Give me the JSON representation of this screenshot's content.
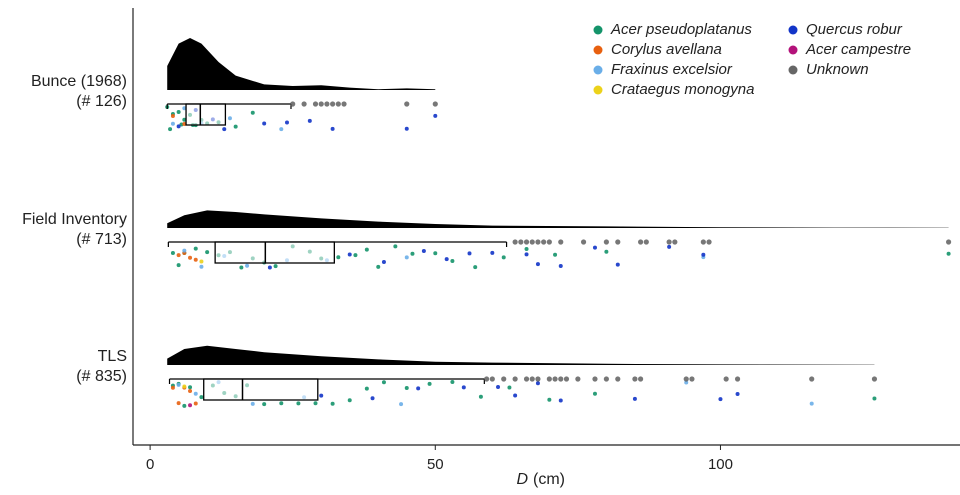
{
  "chart_data": {
    "type": "raincloud",
    "xlabel": "D",
    "xlabel_unit": "(cm)",
    "xlim": [
      -3,
      142
    ],
    "xticks": [
      0,
      50,
      100
    ],
    "legend": [
      {
        "name": "Acer pseudoplatanus",
        "color": "#14946a"
      },
      {
        "name": "Corylus avellana",
        "color": "#e8600f"
      },
      {
        "name": "Fraxinus excelsior",
        "color": "#6aaee8"
      },
      {
        "name": "Crataegus monogyna",
        "color": "#ecd21a"
      },
      {
        "name": "Quercus robur",
        "color": "#1234c8"
      },
      {
        "name": "Acer campestre",
        "color": "#b3127a"
      },
      {
        "name": "Unknown",
        "color": "#666666"
      }
    ],
    "groups": [
      {
        "label": "Bunce (1968)",
        "count_label": "(# 126)",
        "density": {
          "x": [
            3,
            5,
            7,
            9,
            12,
            15,
            20,
            25,
            30,
            35,
            40,
            45,
            50
          ],
          "values": [
            0.03,
            0.058,
            0.065,
            0.058,
            0.035,
            0.018,
            0.007,
            0.005,
            0.006,
            0.003,
            0.001,
            0.002,
            0.001
          ]
        },
        "box": {
          "whisker_low": 3,
          "q1": 6.3,
          "median": 8.8,
          "q3": 13.2,
          "whisker_high": 24.7
        },
        "outliers": [
          25,
          27,
          29,
          30,
          31,
          32,
          33,
          34,
          45,
          50
        ],
        "series": [
          {
            "name": "Acer pseudoplatanus",
            "values": [
              3,
              3.5,
              4,
              5,
              5.5,
              6,
              7,
              7.5,
              8,
              9,
              10,
              12,
              15,
              18
            ]
          },
          {
            "name": "Corylus avellana",
            "values": [
              4,
              6
            ]
          },
          {
            "name": "Fraxinus excelsior",
            "values": [
              4,
              6,
              9,
              14,
              23
            ]
          },
          {
            "name": "Quercus robur",
            "values": [
              5,
              8,
              11,
              13,
              20,
              24,
              28,
              32,
              45,
              50
            ]
          }
        ]
      },
      {
        "label": "Field Inventory",
        "count_label": "(# 713)",
        "density": {
          "x": [
            3,
            6,
            10,
            15,
            20,
            30,
            40,
            50,
            60,
            80,
            100,
            120,
            140
          ],
          "values": [
            0.006,
            0.016,
            0.022,
            0.02,
            0.017,
            0.012,
            0.008,
            0.005,
            0.003,
            0.002,
            0.001,
            0.0005,
            0.0003
          ]
        },
        "box": {
          "whisker_low": 3.2,
          "q1": 11.4,
          "median": 20.2,
          "q3": 32.3,
          "whisker_high": 62.5
        },
        "outliers": [
          64,
          65,
          66,
          67,
          68,
          69,
          70,
          72,
          76,
          80,
          82,
          86,
          87,
          91,
          92,
          97,
          98,
          140
        ],
        "series": [
          {
            "name": "Acer pseudoplatanus",
            "values": [
              4,
              5,
              6,
              8,
              10,
              12,
              14,
              16,
              18,
              20,
              22,
              25,
              28,
              30,
              33,
              36,
              38,
              40,
              43,
              46,
              50,
              53,
              57,
              62,
              66,
              71,
              80,
              140
            ]
          },
          {
            "name": "Corylus avellana",
            "values": [
              5,
              6,
              7,
              8
            ]
          },
          {
            "name": "Fraxinus excelsior",
            "values": [
              6,
              9,
              13,
              17,
              24,
              31,
              45,
              97
            ]
          },
          {
            "name": "Crataegus monogyna",
            "values": [
              9
            ]
          },
          {
            "name": "Quercus robur",
            "values": [
              21,
              35,
              41,
              48,
              52,
              56,
              60,
              66,
              68,
              72,
              78,
              82,
              91,
              97
            ]
          }
        ]
      },
      {
        "label": "TLS",
        "count_label": "(# 835)",
        "density": {
          "x": [
            3,
            6,
            10,
            15,
            20,
            30,
            40,
            50,
            60,
            80,
            100,
            127
          ],
          "values": [
            0.008,
            0.02,
            0.024,
            0.02,
            0.016,
            0.011,
            0.007,
            0.004,
            0.003,
            0.0015,
            0.0008,
            0.0003
          ]
        },
        "box": {
          "whisker_low": 3.4,
          "q1": 9.4,
          "median": 16.2,
          "q3": 29.4,
          "whisker_high": 58.6
        },
        "outliers": [
          59,
          60,
          62,
          64,
          66,
          67,
          68,
          70,
          71,
          72,
          73,
          75,
          78,
          80,
          82,
          85,
          86,
          94,
          95,
          101,
          103,
          116,
          127
        ],
        "series": [
          {
            "name": "Acer pseudoplatanus",
            "values": [
              4,
              5,
              6,
              7,
              9,
              11,
              13,
              15,
              17,
              20,
              23,
              26,
              29,
              32,
              35,
              38,
              41,
              45,
              49,
              53,
              58,
              63,
              70,
              78,
              127
            ]
          },
          {
            "name": "Corylus avellana",
            "values": [
              4,
              5,
              6,
              7,
              8
            ]
          },
          {
            "name": "Fraxinus excelsior",
            "values": [
              5,
              8,
              12,
              18,
              27,
              44,
              94,
              116
            ]
          },
          {
            "name": "Crataegus monogyna",
            "values": [
              6
            ]
          },
          {
            "name": "Acer campestre",
            "values": [
              7
            ]
          },
          {
            "name": "Quercus robur",
            "values": [
              30,
              39,
              47,
              55,
              61,
              64,
              68,
              72,
              85,
              100,
              103
            ]
          }
        ]
      }
    ]
  }
}
